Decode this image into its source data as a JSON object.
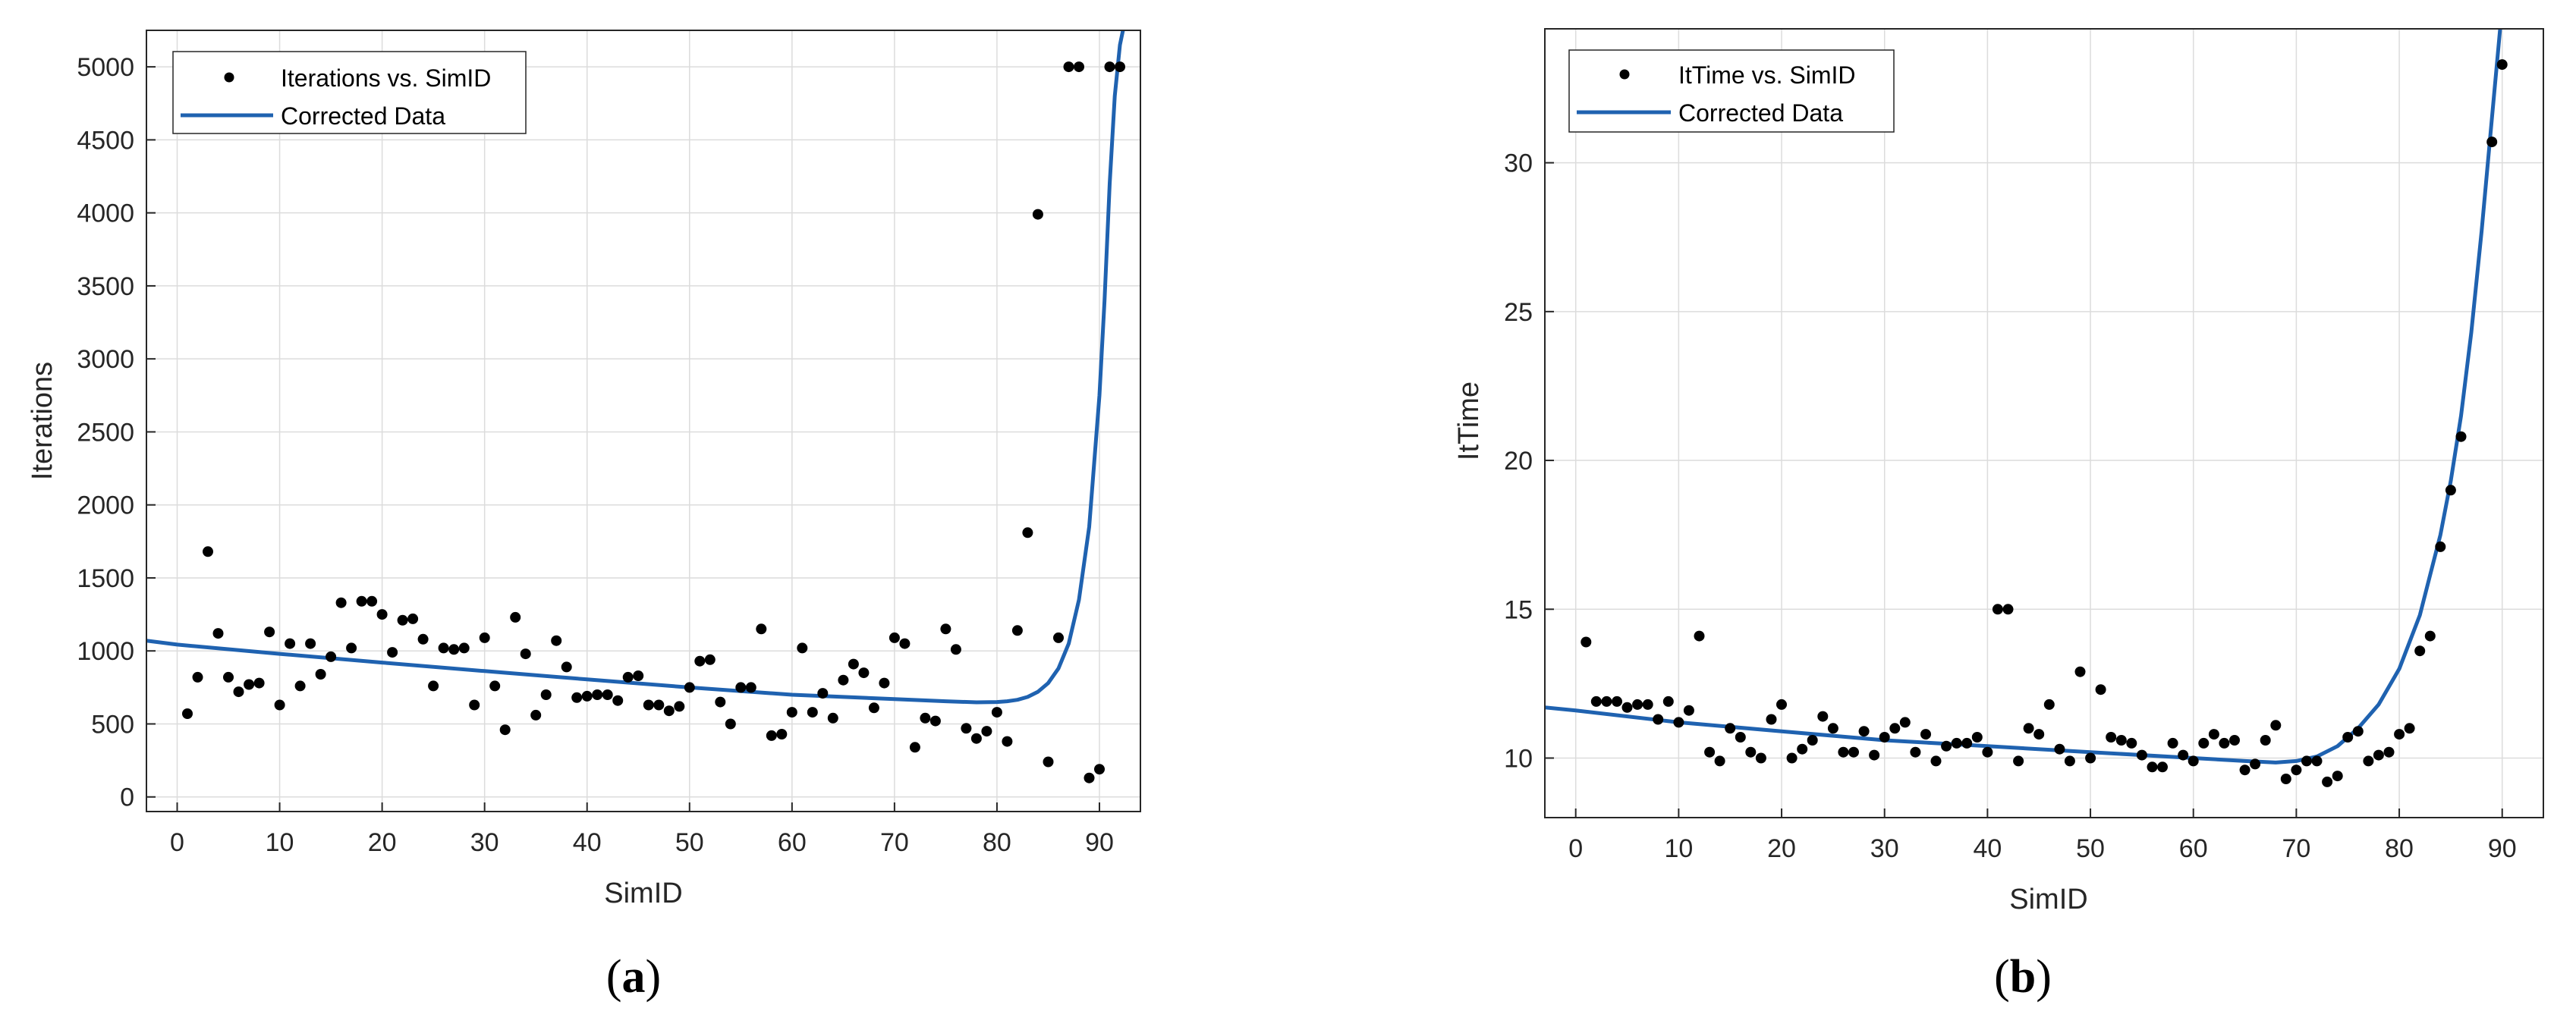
{
  "chart_data": [
    {
      "type": "scatter",
      "panel_label": "a",
      "xlabel": "SimID",
      "ylabel": "Iterations",
      "xlim": [
        -3,
        94
      ],
      "ylim": [
        -100,
        5250
      ],
      "xticks": [
        0,
        10,
        20,
        30,
        40,
        50,
        60,
        70,
        80,
        90
      ],
      "yticks": [
        0,
        500,
        1000,
        1500,
        2000,
        2500,
        3000,
        3500,
        4000,
        4500,
        5000
      ],
      "grid": true,
      "legend_position": "top-left",
      "series": [
        {
          "name": "Iterations vs. SimID",
          "kind": "scatter",
          "color": "#000000",
          "x": [
            1,
            2,
            3,
            4,
            5,
            6,
            7,
            8,
            9,
            10,
            11,
            12,
            13,
            14,
            15,
            16,
            17,
            18,
            19,
            20,
            21,
            22,
            23,
            24,
            25,
            26,
            27,
            28,
            29,
            30,
            31,
            32,
            33,
            34,
            35,
            36,
            37,
            38,
            39,
            40,
            41,
            42,
            43,
            44,
            45,
            46,
            47,
            48,
            49,
            50,
            51,
            52,
            53,
            54,
            55,
            56,
            57,
            58,
            59,
            60,
            61,
            62,
            63,
            64,
            65,
            66,
            67,
            68,
            69,
            70,
            71,
            72,
            73,
            74,
            75,
            76,
            77,
            78,
            79,
            80,
            81,
            82,
            83,
            84,
            85,
            86,
            87,
            88,
            89,
            90,
            91,
            92
          ],
          "y": [
            570,
            820,
            1680,
            1120,
            820,
            720,
            770,
            780,
            1130,
            630,
            1050,
            760,
            1050,
            840,
            960,
            1330,
            1020,
            1340,
            1340,
            1250,
            990,
            1210,
            1220,
            1080,
            760,
            1020,
            1010,
            1020,
            630,
            1090,
            760,
            460,
            1230,
            980,
            560,
            700,
            1070,
            890,
            680,
            690,
            700,
            700,
            660,
            820,
            830,
            630,
            630,
            590,
            620,
            750,
            930,
            940,
            650,
            500,
            750,
            750,
            1150,
            420,
            430,
            580,
            1020,
            580,
            710,
            540,
            800,
            910,
            850,
            610,
            780,
            1090,
            1050,
            340,
            540,
            520,
            1150,
            1010,
            470,
            400,
            450,
            580,
            380,
            1140,
            1810,
            3990,
            240,
            1090,
            5000,
            5000,
            130,
            190,
            5000,
            5000
          ]
        },
        {
          "name": "Corrected Data",
          "kind": "line",
          "color": "#1f62b0",
          "x": [
            -3,
            0,
            10,
            20,
            30,
            40,
            50,
            60,
            70,
            75,
            78,
            80,
            81,
            82,
            83,
            84,
            85,
            86,
            87,
            88,
            89,
            90,
            90.5,
            91,
            91.5,
            92,
            92.3
          ],
          "y": [
            1070,
            1043,
            980,
            920,
            862,
            805,
            750,
            700,
            670,
            655,
            648,
            650,
            655,
            665,
            685,
            720,
            780,
            880,
            1050,
            1350,
            1850,
            2750,
            3400,
            4200,
            4800,
            5150,
            5250
          ]
        }
      ]
    },
    {
      "type": "scatter",
      "panel_label": "b",
      "xlabel": "SimID",
      "ylabel": "ItTime",
      "xlim": [
        -3,
        94
      ],
      "ylim": [
        8,
        34.5
      ],
      "xticks": [
        0,
        10,
        20,
        30,
        40,
        50,
        60,
        70,
        80,
        90
      ],
      "yticks": [
        10,
        15,
        20,
        25,
        30
      ],
      "grid": true,
      "legend_position": "top-left",
      "series": [
        {
          "name": "ItTime vs. SimID",
          "kind": "scatter",
          "color": "#000000",
          "x": [
            1,
            2,
            3,
            4,
            5,
            6,
            7,
            8,
            9,
            10,
            11,
            12,
            13,
            14,
            15,
            16,
            17,
            18,
            19,
            20,
            21,
            22,
            23,
            24,
            25,
            26,
            27,
            28,
            29,
            30,
            31,
            32,
            33,
            34,
            35,
            36,
            37,
            38,
            39,
            40,
            41,
            42,
            43,
            44,
            45,
            46,
            47,
            48,
            49,
            50,
            51,
            52,
            53,
            54,
            55,
            56,
            57,
            58,
            59,
            60,
            61,
            62,
            63,
            64,
            65,
            66,
            67,
            68,
            69,
            70,
            71,
            72,
            73,
            74,
            75,
            76,
            77,
            78,
            79,
            80,
            81,
            82,
            83,
            84,
            85,
            86,
            89,
            90
          ],
          "y": [
            13.9,
            11.9,
            11.9,
            11.9,
            11.7,
            11.8,
            11.8,
            11.3,
            11.9,
            11.2,
            11.6,
            14.1,
            10.2,
            9.9,
            11.0,
            10.7,
            10.2,
            10.0,
            11.3,
            11.8,
            10.0,
            10.3,
            10.6,
            11.4,
            11.0,
            10.2,
            10.2,
            10.9,
            10.1,
            10.7,
            11.0,
            11.2,
            10.2,
            10.8,
            9.9,
            10.4,
            10.5,
            10.5,
            10.7,
            10.2,
            15.0,
            15.0,
            9.9,
            11.0,
            10.8,
            11.8,
            10.3,
            9.9,
            12.9,
            10.0,
            12.3,
            10.7,
            10.6,
            10.5,
            10.1,
            9.7,
            9.7,
            10.5,
            10.1,
            9.9,
            10.5,
            10.8,
            10.5,
            10.6,
            9.6,
            9.8,
            10.6,
            11.1,
            9.3,
            9.6,
            9.9,
            9.9,
            9.2,
            9.4,
            10.7,
            10.9,
            9.9,
            10.1,
            10.2,
            10.8,
            11.0,
            13.6,
            14.1,
            17.1,
            19.0,
            20.8,
            30.7,
            33.3
          ]
        },
        {
          "name": "Corrected Data",
          "kind": "line",
          "color": "#1f62b0",
          "x": [
            -3,
            0,
            10,
            20,
            30,
            40,
            50,
            60,
            65,
            68,
            70,
            72,
            74,
            76,
            78,
            80,
            82,
            84,
            85,
            86,
            87,
            88,
            89,
            89.8,
            90.3
          ],
          "y": [
            11.7,
            11.6,
            11.2,
            10.9,
            10.6,
            10.4,
            10.2,
            10.0,
            9.9,
            9.85,
            9.9,
            10.05,
            10.4,
            11.0,
            11.8,
            13.0,
            14.8,
            17.5,
            19.3,
            21.5,
            24.3,
            27.7,
            31.5,
            34.5,
            36.0
          ]
        }
      ]
    }
  ]
}
